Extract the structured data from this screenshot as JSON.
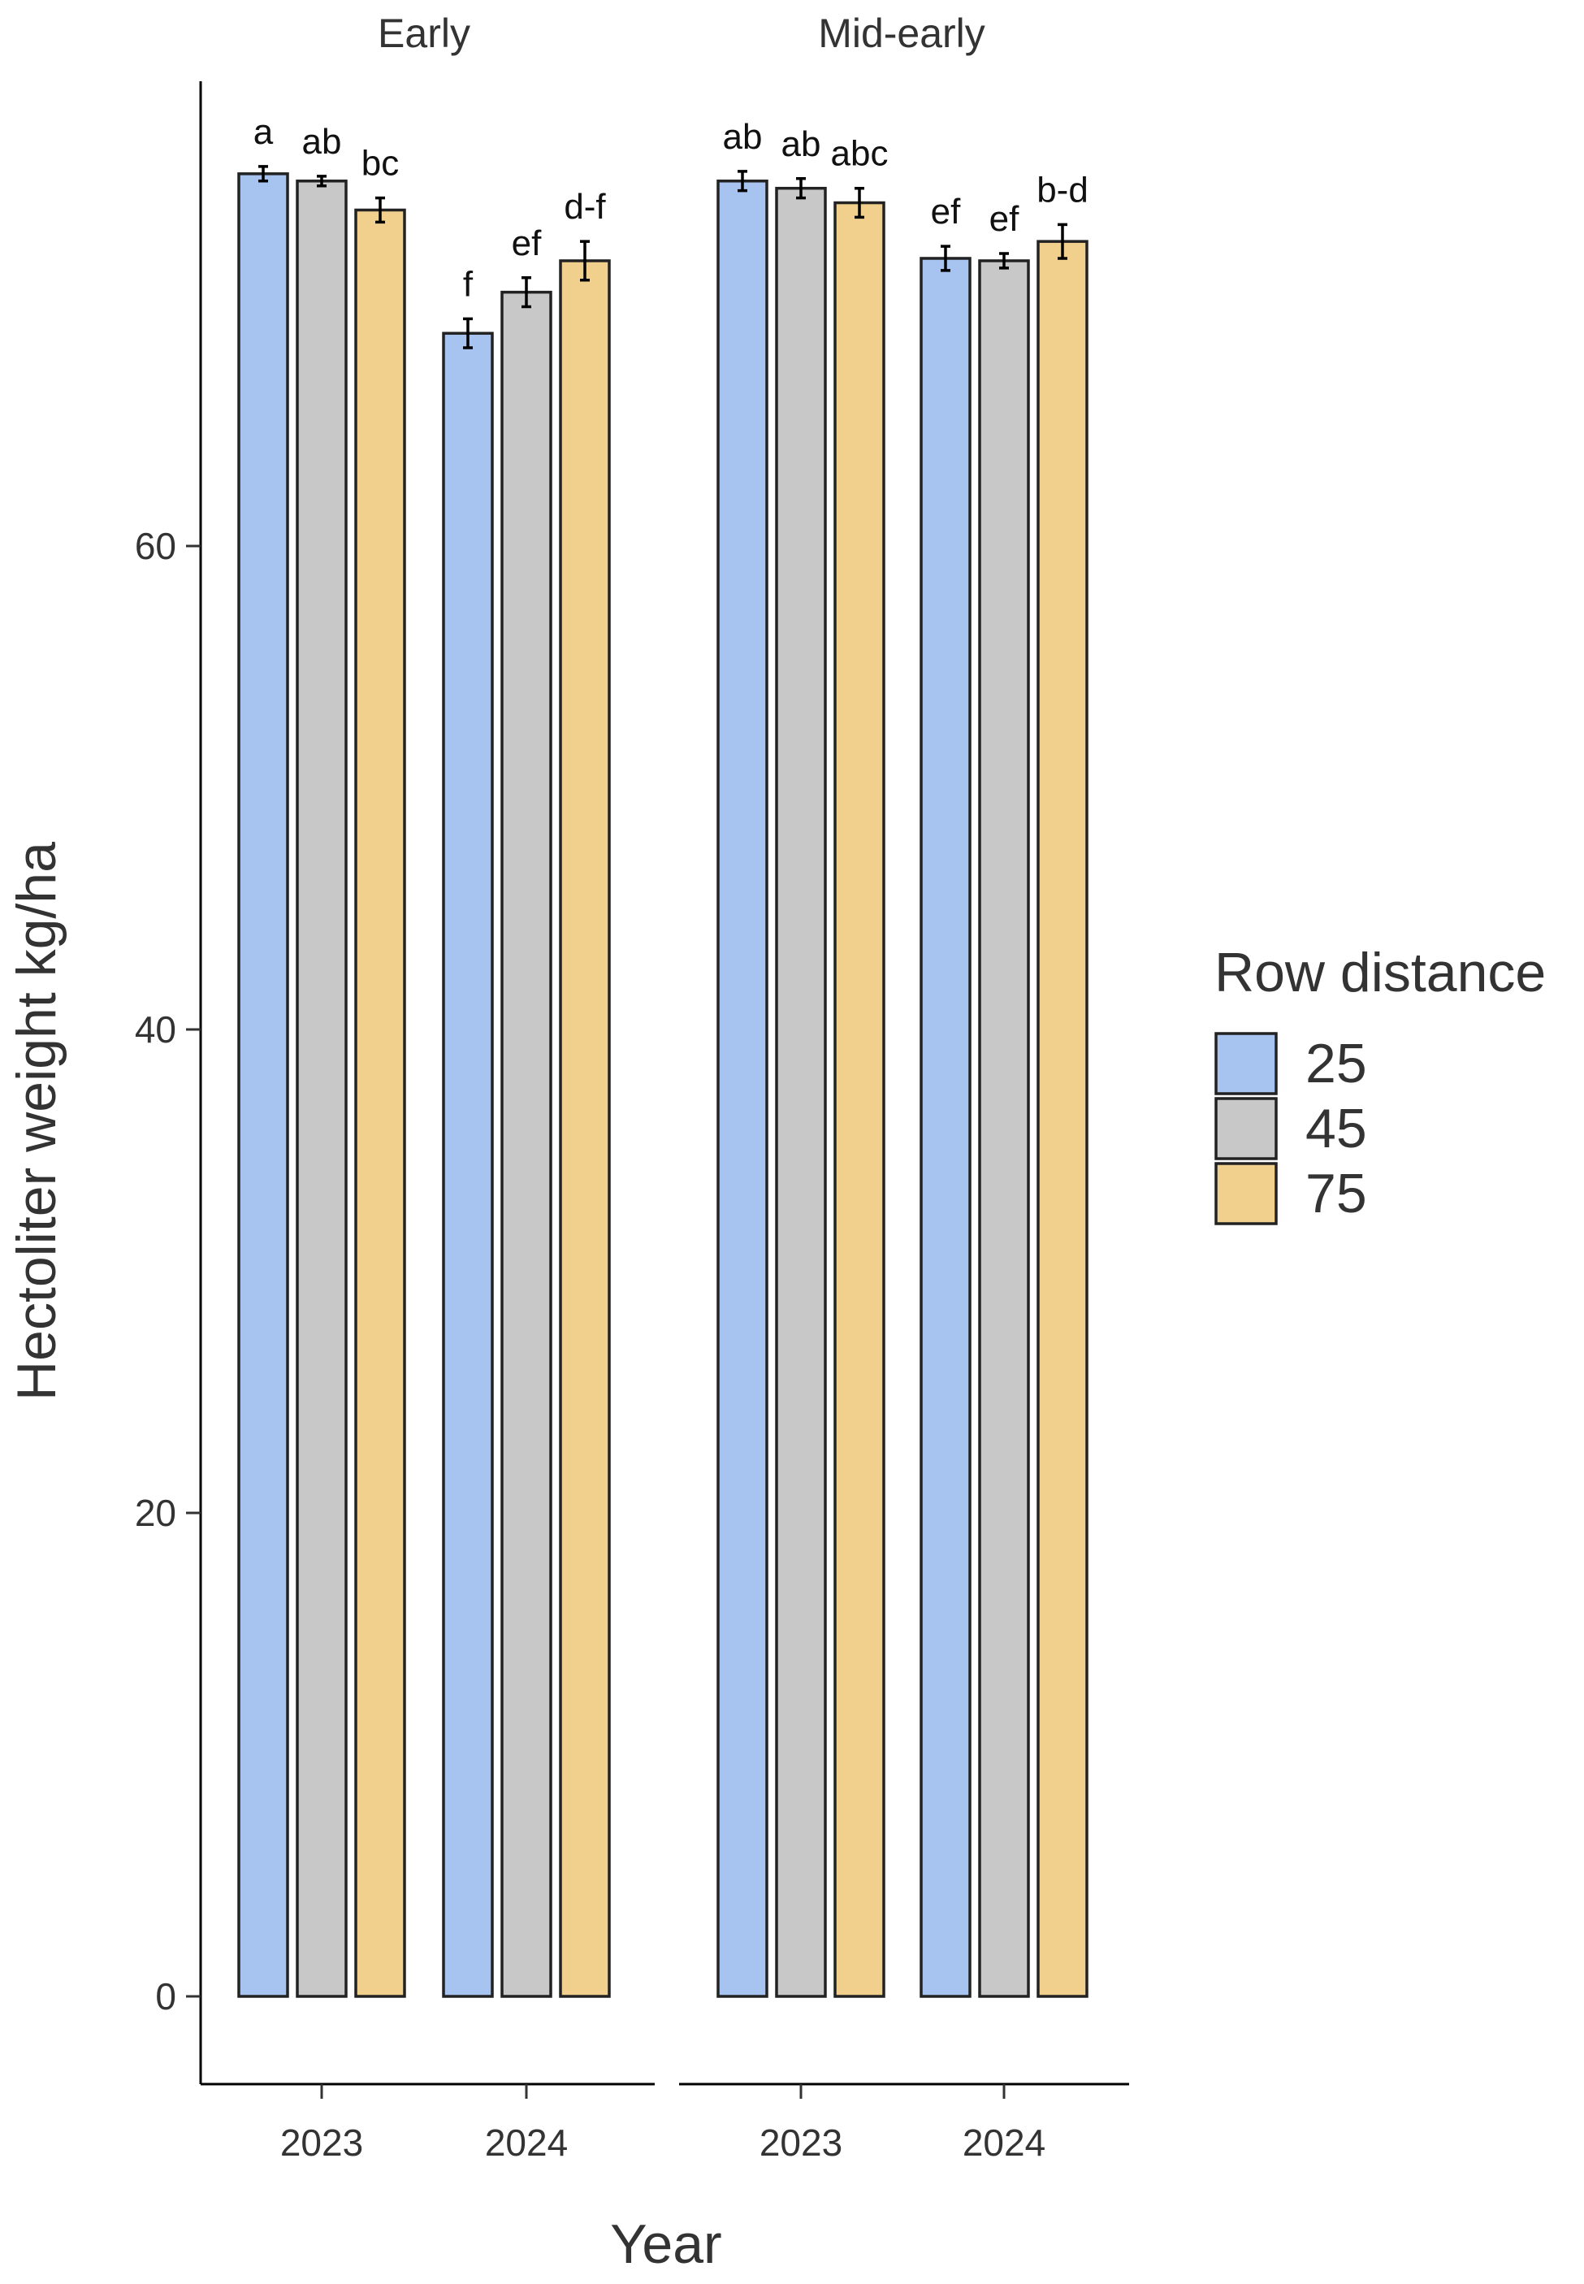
{
  "chart_data": {
    "type": "bar",
    "ylabel": "Hectoliter weight kg/ha",
    "xlabel": "Year",
    "ylim": [
      -3.5,
      79.5
    ],
    "yticks": [
      0,
      20,
      40,
      60
    ],
    "categories": [
      "2023",
      "2024"
    ],
    "legend": {
      "title": "Row distance",
      "position": "right",
      "entries": [
        "25",
        "45",
        "75"
      ]
    },
    "colors": {
      "25": "#a7c4f0",
      "45": "#c8c8c8",
      "75": "#f1d08e"
    },
    "panels": [
      {
        "name": "Early",
        "series": [
          {
            "name": "25",
            "values": [
              75.4,
              68.8
            ],
            "errors": [
              0.3,
              0.6
            ],
            "labels": [
              "a",
              "f"
            ]
          },
          {
            "name": "45",
            "values": [
              75.1,
              70.5
            ],
            "errors": [
              0.2,
              0.6
            ],
            "labels": [
              "ab",
              "ef"
            ]
          },
          {
            "name": "75",
            "values": [
              73.9,
              71.8
            ],
            "errors": [
              0.5,
              0.8
            ],
            "labels": [
              "bc",
              "d-f"
            ]
          }
        ]
      },
      {
        "name": "Mid-early",
        "series": [
          {
            "name": "25",
            "values": [
              75.1,
              71.9
            ],
            "errors": [
              0.4,
              0.5
            ],
            "labels": [
              "ab",
              "ef"
            ]
          },
          {
            "name": "45",
            "values": [
              74.8,
              71.8
            ],
            "errors": [
              0.4,
              0.3
            ],
            "labels": [
              "ab",
              "ef"
            ]
          },
          {
            "name": "75",
            "values": [
              74.2,
              72.6
            ],
            "errors": [
              0.6,
              0.7
            ],
            "labels": [
              "abc",
              "b-d"
            ]
          }
        ]
      }
    ]
  }
}
